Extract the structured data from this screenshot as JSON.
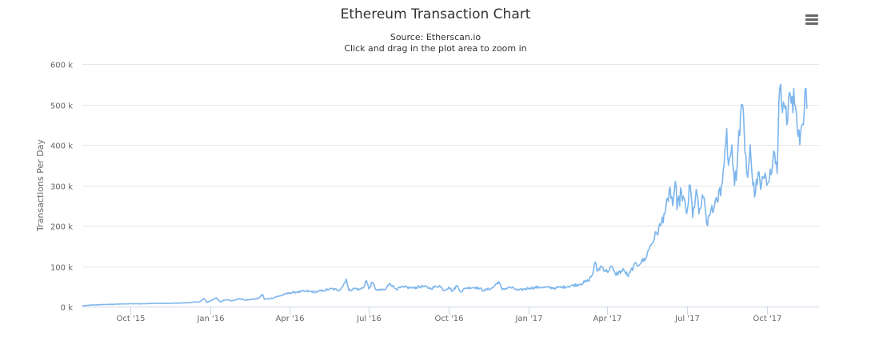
{
  "title": "Ethereum Transaction Chart",
  "subtitle_source": "Source: Etherscan.io",
  "subtitle_hint": "Click and drag in the plot area to zoom in",
  "menu_icon": "hamburger-menu-icon",
  "colors": {
    "line": "#7cb5ec",
    "grid": "#e6e6e6",
    "axis": "#ccd6eb",
    "text": "#333333",
    "tick_text": "#666666"
  },
  "chart_data": {
    "type": "line",
    "ylabel": "Transactions Per Day",
    "xlabel": "",
    "grid": true,
    "ylim": [
      0,
      600000
    ],
    "xlim": [
      "2015-08-07",
      "2017-11-30"
    ],
    "y_ticks": [
      {
        "value": 0,
        "label": "0 k"
      },
      {
        "value": 100000,
        "label": "100 k"
      },
      {
        "value": 200000,
        "label": "200 k"
      },
      {
        "value": 300000,
        "label": "300 k"
      },
      {
        "value": 400000,
        "label": "400 k"
      },
      {
        "value": 500000,
        "label": "500 k"
      },
      {
        "value": 600000,
        "label": "600 k"
      }
    ],
    "x_ticks": [
      {
        "date": "2015-10-01",
        "label": "Oct '15"
      },
      {
        "date": "2016-01-01",
        "label": "Jan '16"
      },
      {
        "date": "2016-04-01",
        "label": "Apr '16"
      },
      {
        "date": "2016-07-01",
        "label": "Jul '16"
      },
      {
        "date": "2016-10-01",
        "label": "Oct '16"
      },
      {
        "date": "2017-01-01",
        "label": "Jan '17"
      },
      {
        "date": "2017-04-01",
        "label": "Apr '17"
      },
      {
        "date": "2017-07-01",
        "label": "Jul '17"
      },
      {
        "date": "2017-10-01",
        "label": "Oct '17"
      }
    ],
    "series": [
      {
        "points": [
          [
            "2015-08-07",
            2000
          ],
          [
            "2015-08-20",
            4000
          ],
          [
            "2015-09-01",
            5000
          ],
          [
            "2015-09-15",
            6000
          ],
          [
            "2015-10-01",
            7000
          ],
          [
            "2015-10-15",
            7000
          ],
          [
            "2015-11-01",
            8000
          ],
          [
            "2015-11-15",
            8000
          ],
          [
            "2015-12-01",
            9000
          ],
          [
            "2015-12-10",
            10000
          ],
          [
            "2015-12-20",
            12000
          ],
          [
            "2015-12-25",
            20000
          ],
          [
            "2015-12-28",
            10000
          ],
          [
            "2016-01-01",
            14000
          ],
          [
            "2016-01-08",
            22000
          ],
          [
            "2016-01-12",
            12000
          ],
          [
            "2016-01-20",
            17000
          ],
          [
            "2016-01-26",
            14000
          ],
          [
            "2016-02-03",
            20000
          ],
          [
            "2016-02-10",
            16000
          ],
          [
            "2016-02-18",
            18000
          ],
          [
            "2016-02-25",
            20000
          ],
          [
            "2016-03-01",
            30000
          ],
          [
            "2016-03-03",
            18000
          ],
          [
            "2016-03-10",
            20000
          ],
          [
            "2016-03-20",
            26000
          ],
          [
            "2016-04-01",
            34000
          ],
          [
            "2016-04-10",
            36000
          ],
          [
            "2016-04-20",
            38000
          ],
          [
            "2016-05-01",
            36000
          ],
          [
            "2016-05-10",
            40000
          ],
          [
            "2016-05-20",
            44000
          ],
          [
            "2016-05-27",
            40000
          ],
          [
            "2016-06-01",
            50000
          ],
          [
            "2016-06-05",
            68000
          ],
          [
            "2016-06-08",
            40000
          ],
          [
            "2016-06-15",
            45000
          ],
          [
            "2016-06-20",
            42000
          ],
          [
            "2016-06-25",
            48000
          ],
          [
            "2016-06-28",
            65000
          ],
          [
            "2016-07-01",
            44000
          ],
          [
            "2016-07-05",
            60000
          ],
          [
            "2016-07-10",
            40000
          ],
          [
            "2016-07-20",
            42000
          ],
          [
            "2016-07-25",
            58000
          ],
          [
            "2016-08-01",
            44000
          ],
          [
            "2016-08-10",
            48000
          ],
          [
            "2016-08-20",
            46000
          ],
          [
            "2016-09-01",
            50000
          ],
          [
            "2016-09-10",
            45000
          ],
          [
            "2016-09-20",
            52000
          ],
          [
            "2016-09-25",
            40000
          ],
          [
            "2016-10-01",
            48000
          ],
          [
            "2016-10-05",
            38000
          ],
          [
            "2016-10-10",
            52000
          ],
          [
            "2016-10-15",
            36000
          ],
          [
            "2016-10-20",
            46000
          ],
          [
            "2016-11-01",
            48000
          ],
          [
            "2016-11-10",
            40000
          ],
          [
            "2016-11-20",
            46000
          ],
          [
            "2016-11-27",
            62000
          ],
          [
            "2016-12-01",
            42000
          ],
          [
            "2016-12-10",
            48000
          ],
          [
            "2016-12-20",
            40000
          ],
          [
            "2017-01-01",
            46000
          ],
          [
            "2017-01-15",
            48000
          ],
          [
            "2017-02-01",
            46000
          ],
          [
            "2017-02-15",
            50000
          ],
          [
            "2017-03-01",
            56000
          ],
          [
            "2017-03-10",
            64000
          ],
          [
            "2017-03-15",
            80000
          ],
          [
            "2017-03-18",
            110000
          ],
          [
            "2017-03-20",
            88000
          ],
          [
            "2017-03-25",
            100000
          ],
          [
            "2017-04-01",
            85000
          ],
          [
            "2017-04-05",
            100000
          ],
          [
            "2017-04-10",
            80000
          ],
          [
            "2017-04-20",
            90000
          ],
          [
            "2017-04-25",
            75000
          ],
          [
            "2017-05-01",
            100000
          ],
          [
            "2017-05-10",
            110000
          ],
          [
            "2017-05-15",
            120000
          ],
          [
            "2017-05-20",
            150000
          ],
          [
            "2017-05-25",
            170000
          ],
          [
            "2017-06-01",
            200000
          ],
          [
            "2017-06-05",
            230000
          ],
          [
            "2017-06-10",
            260000
          ],
          [
            "2017-06-12",
            295000
          ],
          [
            "2017-06-15",
            250000
          ],
          [
            "2017-06-18",
            310000
          ],
          [
            "2017-06-20",
            240000
          ],
          [
            "2017-06-25",
            285000
          ],
          [
            "2017-07-01",
            230000
          ],
          [
            "2017-07-05",
            300000
          ],
          [
            "2017-07-08",
            220000
          ],
          [
            "2017-07-12",
            290000
          ],
          [
            "2017-07-15",
            230000
          ],
          [
            "2017-07-20",
            270000
          ],
          [
            "2017-07-25",
            200000
          ],
          [
            "2017-07-30",
            250000
          ],
          [
            "2017-08-01",
            240000
          ],
          [
            "2017-08-05",
            260000
          ],
          [
            "2017-08-10",
            300000
          ],
          [
            "2017-08-13",
            350000
          ],
          [
            "2017-08-16",
            440000
          ],
          [
            "2017-08-18",
            350000
          ],
          [
            "2017-08-22",
            400000
          ],
          [
            "2017-08-25",
            300000
          ],
          [
            "2017-08-28",
            350000
          ],
          [
            "2017-09-01",
            480000
          ],
          [
            "2017-09-03",
            500000
          ],
          [
            "2017-09-06",
            380000
          ],
          [
            "2017-09-09",
            320000
          ],
          [
            "2017-09-12",
            400000
          ],
          [
            "2017-09-15",
            300000
          ],
          [
            "2017-09-18",
            280000
          ],
          [
            "2017-09-21",
            330000
          ],
          [
            "2017-09-24",
            290000
          ],
          [
            "2017-09-27",
            320000
          ],
          [
            "2017-10-01",
            300000
          ],
          [
            "2017-10-05",
            340000
          ],
          [
            "2017-10-08",
            360000
          ],
          [
            "2017-10-10",
            380000
          ],
          [
            "2017-10-13",
            330000
          ],
          [
            "2017-10-15",
            510000
          ],
          [
            "2017-10-17",
            550000
          ],
          [
            "2017-10-19",
            480000
          ],
          [
            "2017-10-21",
            500000
          ],
          [
            "2017-10-24",
            450000
          ],
          [
            "2017-10-27",
            530000
          ],
          [
            "2017-10-30",
            520000
          ],
          [
            "2017-11-02",
            500000
          ],
          [
            "2017-11-05",
            440000
          ],
          [
            "2017-11-08",
            400000
          ],
          [
            "2017-11-12",
            450000
          ],
          [
            "2017-11-15",
            540000
          ],
          [
            "2017-11-16",
            490000
          ]
        ]
      }
    ]
  }
}
